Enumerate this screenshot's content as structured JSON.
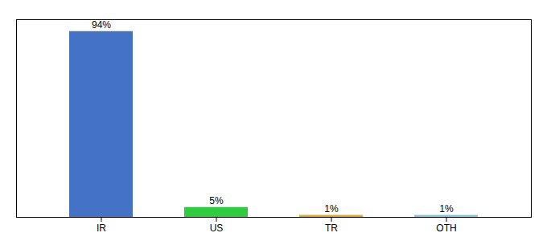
{
  "chart_data": {
    "type": "bar",
    "categories": [
      "IR",
      "US",
      "TR",
      "OTH"
    ],
    "values": [
      94,
      5,
      1,
      1
    ],
    "value_labels": [
      "94%",
      "5%",
      "1%",
      "1%"
    ],
    "colors": [
      "#4472c4",
      "#2ecc40",
      "#e6a817",
      "#7ec8e3"
    ],
    "data_labels": true,
    "ylim": [
      0,
      100
    ],
    "tick_labels": "x"
  }
}
